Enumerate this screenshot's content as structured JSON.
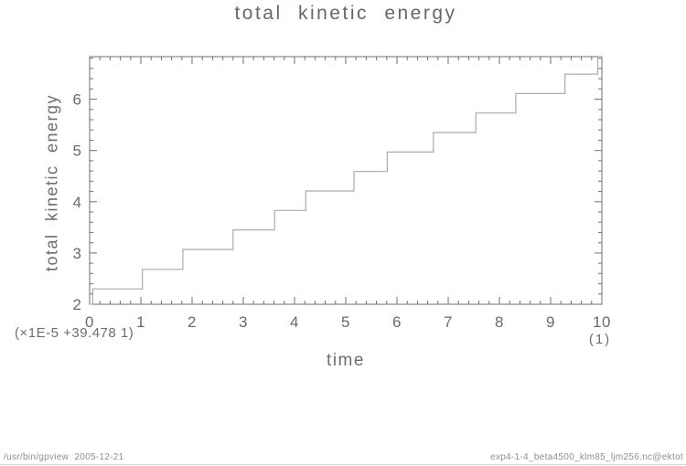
{
  "title": "total kinetic energy",
  "axes": {
    "x_title": "time",
    "y_title": "total kinetic energy",
    "y_factor_label": "(×1E-5 +39.478 1)",
    "x_unit_label": "(1)"
  },
  "footer": {
    "left": "/usr/bin/gpview  2005-12-21",
    "right": "exp4-1-4_beta4500_klm85_ljm256.nc@ektot"
  },
  "colors": {
    "line": "#ababab",
    "frame": "#6f6f6f",
    "tick_text": "#6a6a6a",
    "background": "#ffffff"
  },
  "chart_data": {
    "type": "line",
    "style": "step-after",
    "title": "total kinetic energy",
    "xlabel": "time",
    "ylabel": "total kinetic energy",
    "x_unit": "(1)",
    "y_scale_note": "plotted value = (actual - 39.478) * 1E5",
    "xlim": [
      0,
      10
    ],
    "ylim": [
      2.0,
      6.83
    ],
    "x_major_ticks": [
      0,
      1,
      2,
      3,
      4,
      5,
      6,
      7,
      8,
      9,
      10
    ],
    "y_major_ticks": [
      2,
      3,
      4,
      5,
      6
    ],
    "minor_tick_step": 0.2,
    "grid": false,
    "legend": "none",
    "points": [
      [
        0.0,
        2.0
      ],
      [
        0.06,
        2.3
      ],
      [
        1.03,
        2.68
      ],
      [
        1.82,
        3.07
      ],
      [
        2.8,
        3.45
      ],
      [
        3.61,
        3.83
      ],
      [
        4.22,
        4.21
      ],
      [
        5.16,
        4.59
      ],
      [
        5.81,
        4.97
      ],
      [
        6.71,
        5.35
      ],
      [
        7.54,
        5.73
      ],
      [
        8.32,
        6.11
      ],
      [
        9.28,
        6.49
      ],
      [
        9.92,
        6.83
      ],
      [
        10.0,
        6.83
      ]
    ]
  }
}
